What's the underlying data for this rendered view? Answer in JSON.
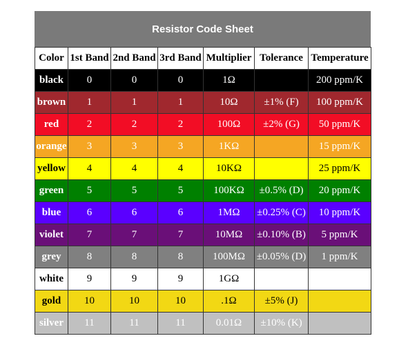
{
  "title": "Resistor Code Sheet",
  "headers": [
    "Color",
    "1st Band",
    "2nd Band",
    "3rd Band",
    "Multiplier",
    "Tolerance",
    "Temperature"
  ],
  "rows": [
    {
      "bg": "#000000",
      "fg": "#ffffff",
      "cells": [
        "black",
        "0",
        "0",
        "0",
        "1Ω",
        "",
        "200 ppm/K"
      ]
    },
    {
      "bg": "#a0282e",
      "fg": "#ffffff",
      "cells": [
        "brown",
        "1",
        "1",
        "1",
        "10Ω",
        "±1% (F)",
        "100 ppm/K"
      ]
    },
    {
      "bg": "#f20d25",
      "fg": "#ffffff",
      "cells": [
        "red",
        "2",
        "2",
        "2",
        "100Ω",
        "±2% (G)",
        "50 ppm/K"
      ]
    },
    {
      "bg": "#f5a623",
      "fg": "#ffffff",
      "cells": [
        "orange",
        "3",
        "3",
        "3",
        "1KΩ",
        "",
        "15 ppm/K"
      ]
    },
    {
      "bg": "#ffff00",
      "fg": "#000000",
      "cells": [
        "yellow",
        "4",
        "4",
        "4",
        "10KΩ",
        "",
        "25 ppm/K"
      ]
    },
    {
      "bg": "#008000",
      "fg": "#ffffff",
      "cells": [
        "green",
        "5",
        "5",
        "5",
        "100KΩ",
        "±0.5% (D)",
        "20 ppm/K"
      ]
    },
    {
      "bg": "#5a00ff",
      "fg": "#ffffff",
      "cells": [
        "blue",
        "6",
        "6",
        "6",
        "1MΩ",
        "±0.25% (C)",
        "10 ppm/K"
      ]
    },
    {
      "bg": "#6a0f78",
      "fg": "#ffffff",
      "cells": [
        "violet",
        "7",
        "7",
        "7",
        "10MΩ",
        "±0.10% (B)",
        "5 ppm/K"
      ]
    },
    {
      "bg": "#808080",
      "fg": "#ffffff",
      "cells": [
        "grey",
        "8",
        "8",
        "8",
        "100MΩ",
        "±0.05% (D)",
        "1 ppm/K"
      ]
    },
    {
      "bg": "#ffffff",
      "fg": "#000000",
      "cells": [
        "white",
        "9",
        "9",
        "9",
        "1GΩ",
        "",
        ""
      ]
    },
    {
      "bg": "#f2d814",
      "fg": "#000000",
      "cells": [
        "gold",
        "10",
        "10",
        "10",
        ".1Ω",
        "±5% (J)",
        ""
      ]
    },
    {
      "bg": "#c0c0c0",
      "fg": "#ffffff",
      "cells": [
        "silver",
        "11",
        "11",
        "11",
        "0.01Ω",
        "±10% (K)",
        ""
      ]
    }
  ]
}
